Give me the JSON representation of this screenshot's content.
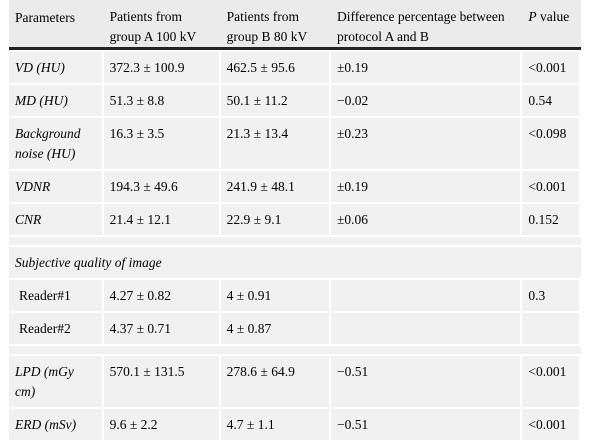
{
  "headers": {
    "parameters": "Parameters",
    "group_a": "Patients from group A 100 kV",
    "group_b": "Patients from group B 80 kV",
    "difference": "Difference percentage between protocol A and B",
    "p_italic": "P",
    "p_rest": " value"
  },
  "rows": [
    {
      "param": "VD (HU)",
      "a": "372.3 ± 100.9",
      "b": "462.5 ± 95.6",
      "diff": "±0.19",
      "p": "<0.001"
    },
    {
      "param": "MD (HU)",
      "a": "51.3 ± 8.8",
      "b": "50.1 ± 11.2",
      "diff": "−0.02",
      "p": "0.54"
    },
    {
      "param": "Background noise (HU)",
      "a": "16.3 ± 3.5",
      "b": "21.3 ± 13.4",
      "diff": "±0.23",
      "p": "<0.098"
    },
    {
      "param": "VDNR",
      "a": "194.3 ± 49.6",
      "b": "241.9 ± 48.1",
      "diff": "±0.19",
      "p": "<0.001"
    },
    {
      "param": "CNR",
      "a": "21.4 ± 12.1",
      "b": "22.9 ± 9.1",
      "diff": "±0.06",
      "p": "0.152"
    }
  ],
  "subjective": {
    "title": "Subjective quality of image",
    "readers": [
      {
        "param": "Reader#1",
        "a": "4.27 ± 0.82",
        "b": "4 ± 0.91",
        "diff": "",
        "p": "0.3"
      },
      {
        "param": "Reader#2",
        "a": "4.37 ± 0.71",
        "b": "4 ± 0.87",
        "diff": "",
        "p": ""
      }
    ]
  },
  "dose_rows": [
    {
      "param": "LPD (mGy cm)",
      "a": "570.1 ± 131.5",
      "b": "278.6 ± 64.9",
      "diff": "−0.51",
      "p": "<0.001"
    },
    {
      "param": "ERD (mSv)",
      "a": "9.6 ± 2.2",
      "b": "4.7 ± 1.1",
      "diff": "−0.51",
      "p": "<0.001"
    }
  ]
}
